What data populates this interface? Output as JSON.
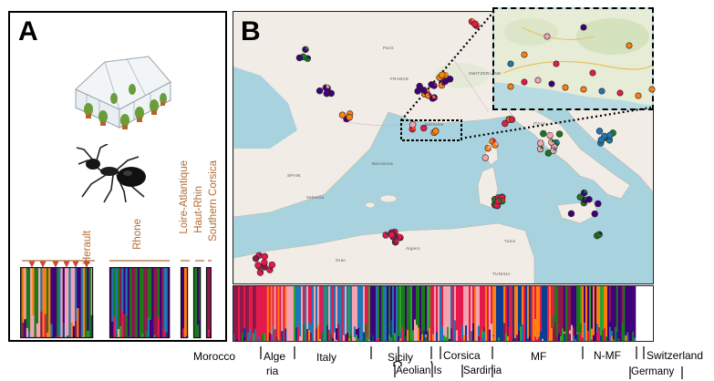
{
  "panel_a": {
    "letter": "A",
    "populations": [
      "Herault",
      "Rhone",
      "Loire-Atlantique",
      "Haut-Rhin",
      "Southern Corsica"
    ]
  },
  "panel_b": {
    "letter": "B",
    "map_labels": [
      "FRANCE",
      "SPAIN",
      "ITALY",
      "SWITZERLAND",
      "TUNISIA",
      "Paris",
      "Barcelona",
      "Valencia",
      "Oran",
      "Algiers",
      "Tunis",
      "Marseille"
    ],
    "regions_top": [
      "Morocco",
      "Alge",
      "Italy",
      "Sicily",
      "Corsica",
      "MF",
      "N-MF",
      "Switzerland"
    ],
    "region_alge_suffix": "ria",
    "regions_bottom": [
      "Aeolian Is",
      "Sardinia",
      "Germany"
    ]
  },
  "colors": {
    "ancestry": [
      "#e6194b",
      "#ff7f0e",
      "#1f77b4",
      "#1a7a1a",
      "#40007a",
      "#f4a3b1",
      "#8b1a4a",
      "#2ca02c",
      "#0b3d91"
    ],
    "label_brown": "#b06a33",
    "marker_red": "#e0463c"
  },
  "icons": [
    "greenhouse-icon",
    "ant-icon"
  ]
}
